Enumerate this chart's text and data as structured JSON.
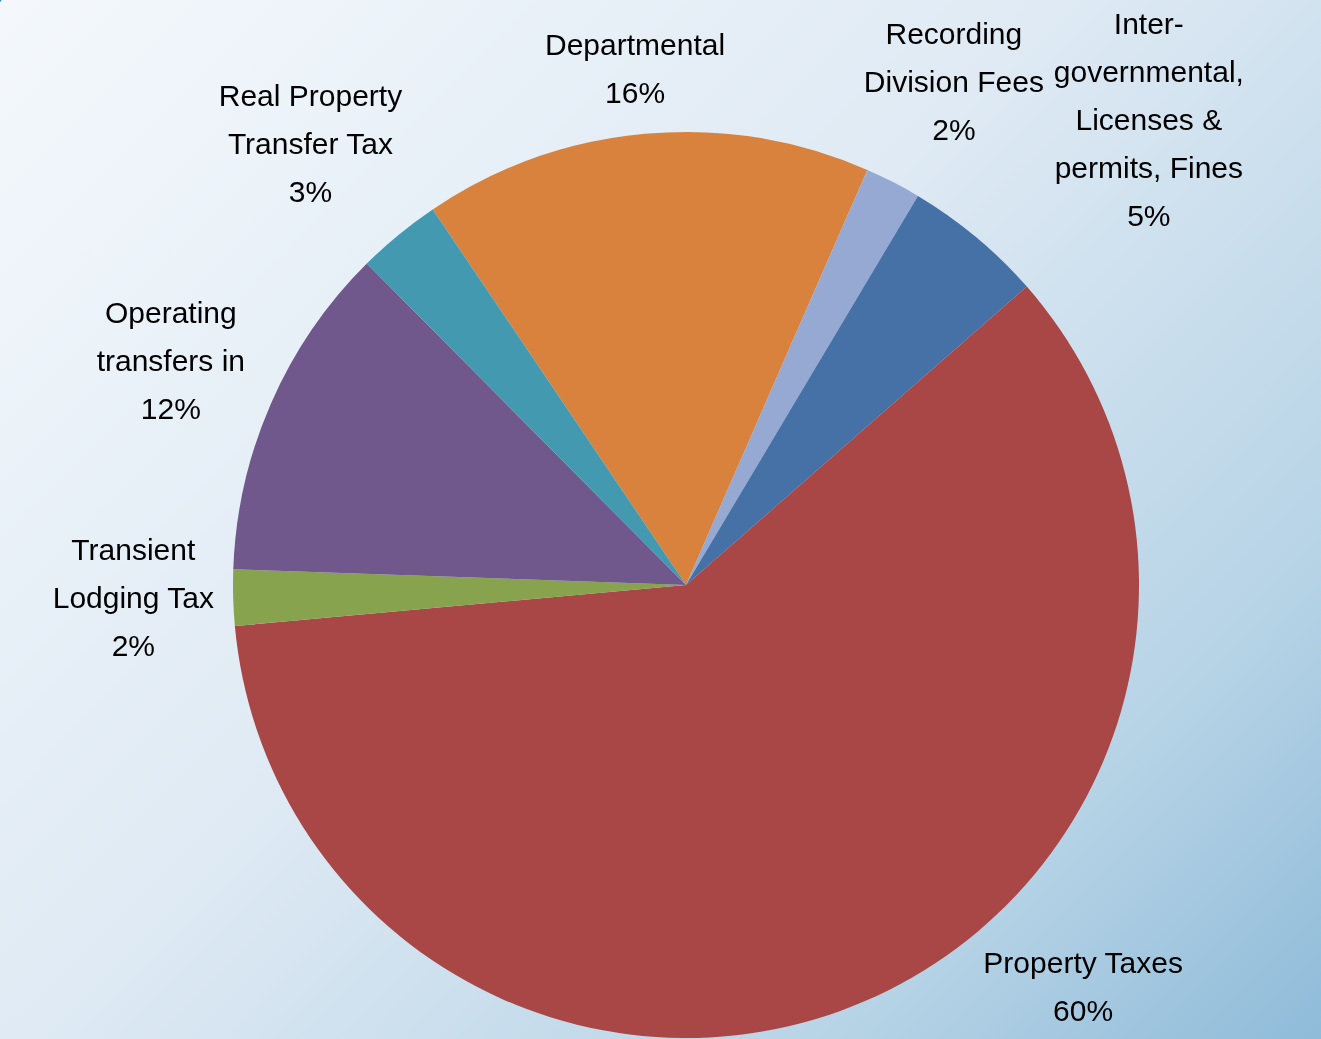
{
  "chart_data": {
    "type": "pie",
    "categories": [
      "Departmental",
      "Recording Division Fees",
      "Inter-governmental, Licenses & permits, Fines",
      "Property Taxes",
      "Transient Lodging Tax",
      "Operating transfers in",
      "Real Property Transfer Tax"
    ],
    "values": [
      16,
      2,
      5,
      60,
      2,
      12,
      3
    ],
    "colors": [
      "#d9823e",
      "#95a9d2",
      "#4571a6",
      "#a84746",
      "#88a34e",
      "#70588c",
      "#4399af"
    ],
    "value_labels": [
      "16%",
      "2%",
      "5%",
      "60%",
      "2%",
      "12%",
      "3%"
    ]
  }
}
